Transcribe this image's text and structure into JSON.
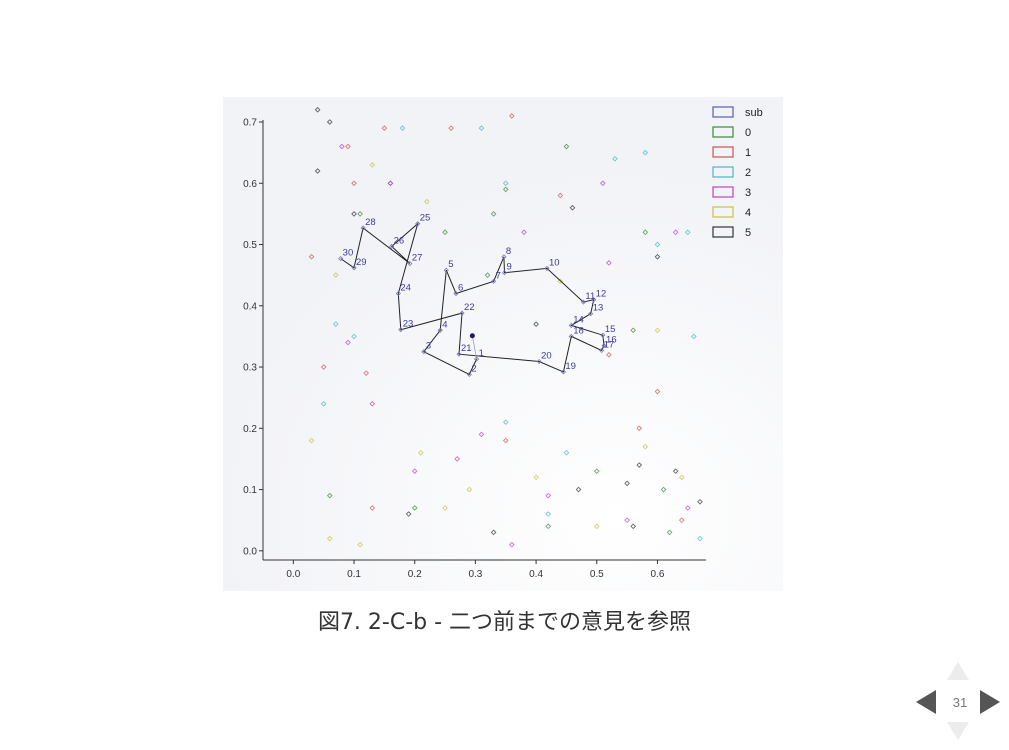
{
  "caption": "図7. 2-C-b - 二つ前までの意見を参照",
  "slide_number": "31",
  "colors": {
    "sub": "#5b5bb8",
    "0": "#3a8a3a",
    "1": "#cc5555",
    "2": "#44b8c8",
    "3": "#c040c0",
    "4": "#c8c040",
    "5": "#333333"
  },
  "chart_data": {
    "type": "scatter",
    "title": "",
    "xlabel": "",
    "ylabel": "",
    "xlim": [
      -0.05,
      0.68
    ],
    "ylim": [
      -0.015,
      0.7
    ],
    "xticks": [
      "0.0",
      "0.1",
      "0.2",
      "0.3",
      "0.4",
      "0.5",
      "0.6"
    ],
    "xtick_values": [
      0,
      0.1,
      0.2,
      0.3,
      0.4,
      0.5,
      0.6
    ],
    "yticks": [
      "0.0",
      "0.1",
      "0.2",
      "0.3",
      "0.4",
      "0.5",
      "0.6",
      "0.7"
    ],
    "ytick_values": [
      0,
      0.1,
      0.2,
      0.3,
      0.4,
      0.5,
      0.6,
      0.7
    ],
    "legend": {
      "placement": "top-right",
      "entries": [
        "sub",
        "0",
        "1",
        "2",
        "3",
        "4",
        "5"
      ]
    },
    "center_point": {
      "x": 0.295,
      "y": 0.351
    },
    "path": [
      {
        "label": "1",
        "x": 0.302,
        "y": 0.313
      },
      {
        "label": "2",
        "x": 0.29,
        "y": 0.288
      },
      {
        "label": "3",
        "x": 0.215,
        "y": 0.325
      },
      {
        "label": "4",
        "x": 0.242,
        "y": 0.36
      },
      {
        "label": "5",
        "x": 0.252,
        "y": 0.458
      },
      {
        "label": "6",
        "x": 0.268,
        "y": 0.42
      },
      {
        "label": "7",
        "x": 0.33,
        "y": 0.44
      },
      {
        "label": "8",
        "x": 0.347,
        "y": 0.48
      },
      {
        "label": "9",
        "x": 0.348,
        "y": 0.454
      },
      {
        "label": "10",
        "x": 0.418,
        "y": 0.461
      },
      {
        "label": "11",
        "x": 0.478,
        "y": 0.406
      },
      {
        "label": "12",
        "x": 0.495,
        "y": 0.41
      },
      {
        "label": "13",
        "x": 0.49,
        "y": 0.387
      },
      {
        "label": "14",
        "x": 0.458,
        "y": 0.368
      },
      {
        "label": "15",
        "x": 0.51,
        "y": 0.352
      },
      {
        "label": "16",
        "x": 0.512,
        "y": 0.335
      },
      {
        "label": "17",
        "x": 0.508,
        "y": 0.327
      },
      {
        "label": "18",
        "x": 0.458,
        "y": 0.35
      },
      {
        "label": "19",
        "x": 0.445,
        "y": 0.292
      },
      {
        "label": "20",
        "x": 0.405,
        "y": 0.309
      },
      {
        "label": "21",
        "x": 0.273,
        "y": 0.321
      },
      {
        "label": "22",
        "x": 0.278,
        "y": 0.388
      },
      {
        "label": "23",
        "x": 0.177,
        "y": 0.361
      },
      {
        "label": "24",
        "x": 0.173,
        "y": 0.42
      },
      {
        "label": "25",
        "x": 0.205,
        "y": 0.534
      },
      {
        "label": "26",
        "x": 0.162,
        "y": 0.497
      },
      {
        "label": "27",
        "x": 0.192,
        "y": 0.469
      },
      {
        "label": "28",
        "x": 0.115,
        "y": 0.527
      },
      {
        "label": "29",
        "x": 0.1,
        "y": 0.462
      },
      {
        "label": "30",
        "x": 0.078,
        "y": 0.477
      }
    ],
    "scatter_series": [
      {
        "name": "0",
        "points": [
          [
            0.16,
            0.6
          ],
          [
            0.25,
            0.52
          ],
          [
            0.32,
            0.45
          ],
          [
            0.35,
            0.59
          ],
          [
            0.58,
            0.52
          ],
          [
            0.56,
            0.36
          ],
          [
            0.61,
            0.1
          ],
          [
            0.5,
            0.13
          ],
          [
            0.42,
            0.04
          ],
          [
            0.2,
            0.07
          ],
          [
            0.06,
            0.09
          ],
          [
            0.11,
            0.55
          ],
          [
            0.45,
            0.66
          ],
          [
            0.33,
            0.55
          ],
          [
            0.62,
            0.03
          ]
        ]
      },
      {
        "name": "1",
        "points": [
          [
            0.03,
            0.48
          ],
          [
            0.09,
            0.66
          ],
          [
            0.12,
            0.29
          ],
          [
            0.15,
            0.69
          ],
          [
            0.26,
            0.69
          ],
          [
            0.36,
            0.71
          ],
          [
            0.52,
            0.32
          ],
          [
            0.6,
            0.26
          ],
          [
            0.64,
            0.05
          ],
          [
            0.57,
            0.2
          ],
          [
            0.44,
            0.58
          ],
          [
            0.35,
            0.18
          ],
          [
            0.13,
            0.07
          ],
          [
            0.05,
            0.3
          ],
          [
            0.1,
            0.6
          ]
        ]
      },
      {
        "name": "2",
        "points": [
          [
            0.18,
            0.69
          ],
          [
            0.31,
            0.69
          ],
          [
            0.35,
            0.6
          ],
          [
            0.53,
            0.64
          ],
          [
            0.58,
            0.65
          ],
          [
            0.65,
            0.52
          ],
          [
            0.66,
            0.35
          ],
          [
            0.6,
            0.5
          ],
          [
            0.35,
            0.21
          ],
          [
            0.42,
            0.06
          ],
          [
            0.05,
            0.24
          ],
          [
            0.1,
            0.35
          ],
          [
            0.45,
            0.16
          ],
          [
            0.67,
            0.02
          ],
          [
            0.07,
            0.37
          ]
        ]
      },
      {
        "name": "3",
        "points": [
          [
            0.08,
            0.66
          ],
          [
            0.16,
            0.6
          ],
          [
            0.27,
            0.15
          ],
          [
            0.31,
            0.19
          ],
          [
            0.38,
            0.52
          ],
          [
            0.52,
            0.47
          ],
          [
            0.55,
            0.05
          ],
          [
            0.63,
            0.52
          ],
          [
            0.65,
            0.07
          ],
          [
            0.09,
            0.34
          ],
          [
            0.13,
            0.24
          ],
          [
            0.42,
            0.09
          ],
          [
            0.51,
            0.6
          ],
          [
            0.2,
            0.13
          ],
          [
            0.36,
            0.01
          ]
        ]
      },
      {
        "name": "4",
        "points": [
          [
            0.07,
            0.45
          ],
          [
            0.13,
            0.63
          ],
          [
            0.22,
            0.57
          ],
          [
            0.21,
            0.16
          ],
          [
            0.29,
            0.1
          ],
          [
            0.4,
            0.12
          ],
          [
            0.5,
            0.04
          ],
          [
            0.58,
            0.17
          ],
          [
            0.64,
            0.12
          ],
          [
            0.11,
            0.01
          ],
          [
            0.03,
            0.18
          ],
          [
            0.6,
            0.36
          ],
          [
            0.06,
            0.02
          ],
          [
            0.44,
            0.44
          ],
          [
            0.25,
            0.07
          ]
        ]
      },
      {
        "name": "5",
        "points": [
          [
            0.04,
            0.72
          ],
          [
            0.06,
            0.7
          ],
          [
            0.04,
            0.62
          ],
          [
            0.1,
            0.55
          ],
          [
            0.4,
            0.37
          ],
          [
            0.6,
            0.48
          ],
          [
            0.57,
            0.14
          ],
          [
            0.63,
            0.13
          ],
          [
            0.67,
            0.08
          ],
          [
            0.56,
            0.04
          ],
          [
            0.46,
            0.56
          ],
          [
            0.55,
            0.11
          ],
          [
            0.33,
            0.03
          ],
          [
            0.47,
            0.1
          ],
          [
            0.19,
            0.06
          ]
        ]
      }
    ]
  }
}
